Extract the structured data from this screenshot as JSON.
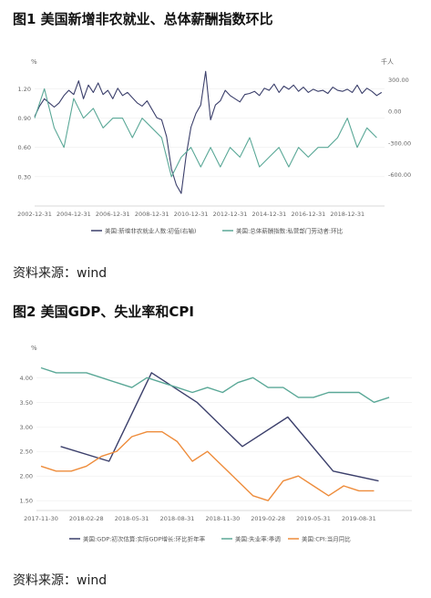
{
  "figure1": {
    "title": "图1 美国新增非农就业、总体薪酬指数环比",
    "source": "资料来源：wind",
    "chart_data": {
      "type": "line",
      "left_unit": "%",
      "right_unit": "千人",
      "left_ticks": [
        "1.20",
        "0.90",
        "0.60",
        "0.30"
      ],
      "left_tick_values": [
        1.2,
        0.9,
        0.6,
        0.3
      ],
      "right_ticks": [
        "300.00",
        "0.00",
        "-300.00",
        "-600.00"
      ],
      "right_tick_values": [
        300,
        0,
        -300,
        -600
      ],
      "ylim_left": [
        0,
        1.4
      ],
      "ylim_right": [
        -900,
        400
      ],
      "x_ticks": [
        "2002-12-31",
        "2004-12-31",
        "2006-12-31",
        "2008-12-31",
        "2010-12-31",
        "2012-12-31",
        "2014-12-31",
        "2016-12-31",
        "2018-12-31"
      ],
      "x_tick_values": [
        2002.0,
        2004.0,
        2006.0,
        2008.0,
        2010.0,
        2012.0,
        2014.0,
        2016.0,
        2018.0
      ],
      "xlim": [
        2002.0,
        2019.9
      ],
      "series": [
        {
          "name": "美国:新增非农就业人数:初值(右轴)",
          "axis": "right",
          "color": "#3b3f6b",
          "x": [
            2002.0,
            2002.25,
            2002.5,
            2002.75,
            2003.0,
            2003.25,
            2003.5,
            2003.75,
            2004.0,
            2004.25,
            2004.5,
            2004.75,
            2005.0,
            2005.25,
            2005.5,
            2005.75,
            2006.0,
            2006.25,
            2006.5,
            2006.75,
            2007.0,
            2007.25,
            2007.5,
            2007.75,
            2008.0,
            2008.25,
            2008.5,
            2008.75,
            2009.0,
            2009.25,
            2009.5,
            2009.75,
            2010.0,
            2010.25,
            2010.5,
            2010.75,
            2011.0,
            2011.25,
            2011.5,
            2011.75,
            2012.0,
            2012.25,
            2012.5,
            2012.75,
            2013.0,
            2013.25,
            2013.5,
            2013.75,
            2014.0,
            2014.25,
            2014.5,
            2014.75,
            2015.0,
            2015.25,
            2015.5,
            2015.75,
            2016.0,
            2016.25,
            2016.5,
            2016.75,
            2017.0,
            2017.25,
            2017.5,
            2017.75,
            2018.0,
            2018.25,
            2018.5,
            2018.75,
            2019.0,
            2019.25,
            2019.5,
            2019.75
          ],
          "values": [
            -50,
            50,
            120,
            80,
            40,
            80,
            150,
            200,
            160,
            290,
            120,
            250,
            180,
            270,
            160,
            200,
            120,
            220,
            150,
            180,
            130,
            80,
            50,
            100,
            20,
            -60,
            -80,
            -240,
            -550,
            -700,
            -780,
            -420,
            -150,
            -20,
            60,
            380,
            -80,
            60,
            100,
            200,
            150,
            120,
            90,
            160,
            170,
            190,
            150,
            220,
            200,
            260,
            180,
            240,
            210,
            250,
            190,
            230,
            180,
            210,
            190,
            200,
            170,
            230,
            200,
            190,
            210,
            180,
            250,
            170,
            220,
            190,
            150,
            180
          ]
        },
        {
          "name": "美国:总体薪酬指数:私营部门劳动者:环比",
          "axis": "left",
          "color": "#5aa897",
          "x": [
            2002.0,
            2002.5,
            2003.0,
            2003.5,
            2004.0,
            2004.5,
            2005.0,
            2005.5,
            2006.0,
            2006.5,
            2007.0,
            2007.5,
            2008.0,
            2008.5,
            2009.0,
            2009.5,
            2010.0,
            2010.5,
            2011.0,
            2011.5,
            2012.0,
            2012.5,
            2013.0,
            2013.5,
            2014.0,
            2014.5,
            2015.0,
            2015.5,
            2016.0,
            2016.5,
            2017.0,
            2017.5,
            2018.0,
            2018.5,
            2019.0,
            2019.5
          ],
          "values": [
            0.9,
            1.2,
            0.8,
            0.6,
            1.1,
            0.9,
            1.0,
            0.8,
            0.9,
            0.9,
            0.7,
            0.9,
            0.8,
            0.7,
            0.3,
            0.5,
            0.6,
            0.4,
            0.6,
            0.4,
            0.6,
            0.5,
            0.7,
            0.4,
            0.5,
            0.6,
            0.4,
            0.6,
            0.5,
            0.6,
            0.6,
            0.7,
            0.9,
            0.6,
            0.8,
            0.7
          ]
        }
      ]
    }
  },
  "figure2": {
    "title": "图2 美国GDP、失业率和CPI",
    "source": "资料来源：wind",
    "chart_data": {
      "type": "line",
      "y_unit": "%",
      "ylim": [
        1.3,
        4.45
      ],
      "y_ticks": [
        "4.00",
        "3.50",
        "3.00",
        "2.50",
        "2.00",
        "1.50"
      ],
      "y_tick_values": [
        4.0,
        3.5,
        3.0,
        2.5,
        2.0,
        1.5
      ],
      "x_ticks": [
        "2017-11-30",
        "2018-02-28",
        "2018-05-31",
        "2018-08-31",
        "2018-11-30",
        "2019-02-28",
        "2019-05-31",
        "2019-08-31"
      ],
      "x_tick_values": [
        0,
        3,
        6,
        9,
        12,
        15,
        18,
        21
      ],
      "xlim": [
        -0.3,
        24.5
      ],
      "series": [
        {
          "name": "美国:GDP:初次估算:实际GDP增长:环比折年率",
          "color": "#3b3f6b",
          "x": [
            1.3,
            4.5,
            7.3,
            10.3,
            13.3,
            16.3,
            19.3,
            22.3
          ],
          "values": [
            2.6,
            2.3,
            4.1,
            3.5,
            2.6,
            3.2,
            2.1,
            1.9
          ]
        },
        {
          "name": "美国:失业率:季调",
          "color": "#5aa897",
          "x": [
            0,
            1,
            2,
            3,
            4,
            5,
            6,
            7,
            8,
            9,
            10,
            11,
            12,
            13,
            14,
            15,
            16,
            17,
            18,
            19,
            20,
            21,
            22,
            23
          ],
          "values": [
            4.2,
            4.1,
            4.1,
            4.1,
            3.9,
            3.8,
            4.0,
            3.9,
            3.8,
            3.7,
            3.8,
            3.7,
            3.9,
            4.0,
            3.8,
            3.8,
            3.6,
            3.6,
            3.7,
            3.7,
            3.7,
            3.5,
            3.6,
            3.6
          ],
          "draw_x": [
            0,
            1,
            2,
            3,
            4,
            5,
            6,
            7,
            8,
            9,
            10,
            11,
            12,
            13,
            14,
            15,
            16,
            17,
            18,
            19,
            20,
            21,
            22,
            23
          ],
          "draw_values": [
            4.2,
            4.1,
            4.1,
            4.1,
            4.0,
            3.9,
            3.8,
            4.0,
            3.9,
            3.8,
            3.7,
            3.8,
            3.7,
            3.9,
            4.0,
            3.8,
            3.8,
            3.6,
            3.6,
            3.7,
            3.7,
            3.7,
            3.5,
            3.6
          ]
        },
        {
          "name": "美国:CPI:当月同比",
          "color": "#ee8c3b",
          "x": [
            0,
            1,
            2,
            3,
            4,
            5,
            6,
            7,
            8,
            9,
            10,
            11,
            12,
            13,
            14,
            15,
            16,
            17,
            18,
            19,
            20,
            21,
            22
          ],
          "values": [
            2.2,
            2.1,
            2.1,
            2.2,
            2.4,
            2.5,
            2.8,
            2.9,
            2.9,
            2.7,
            2.3,
            2.5,
            2.2,
            1.9,
            1.6,
            1.5,
            1.9,
            2.0,
            1.8,
            1.6,
            1.8,
            1.7,
            1.7
          ]
        }
      ]
    }
  }
}
